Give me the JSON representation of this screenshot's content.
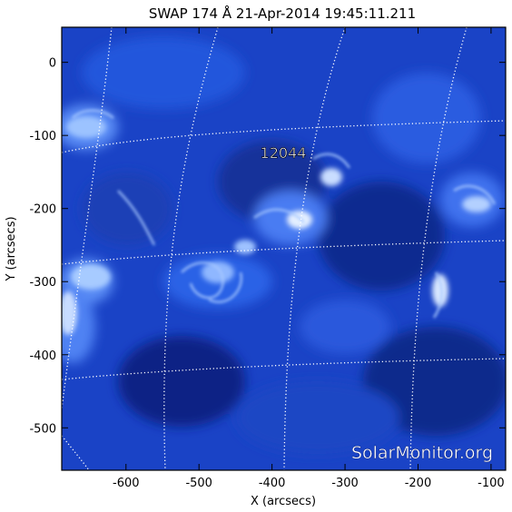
{
  "title": "SWAP 174 Å 21-Apr-2014 19:45:11.211",
  "region_label": "12044",
  "watermark": "SolarMonitor.org",
  "axes": {
    "x_label": "X (arcsecs)",
    "y_label": "Y (arcsecs)",
    "x_ticks": [
      "-600",
      "-500",
      "-400",
      "-300",
      "-200",
      "-100"
    ],
    "y_ticks": [
      "0",
      "-100",
      "-200",
      "-300",
      "-400",
      "-500"
    ],
    "x_tick_values": [
      -600,
      -500,
      -400,
      -300,
      -200,
      -100
    ],
    "y_tick_values": [
      0,
      -100,
      -200,
      -300,
      -400,
      -500
    ],
    "x_range": [
      -688,
      -80
    ],
    "y_range": [
      -558,
      48
    ]
  },
  "colors": {
    "plasma_dark": "#0a1f7a",
    "plasma_mid": "#1f4ed8",
    "plasma_bright": "#7fb2ff",
    "plasma_hot": "#ffffff",
    "grid": "#ffffff"
  }
}
